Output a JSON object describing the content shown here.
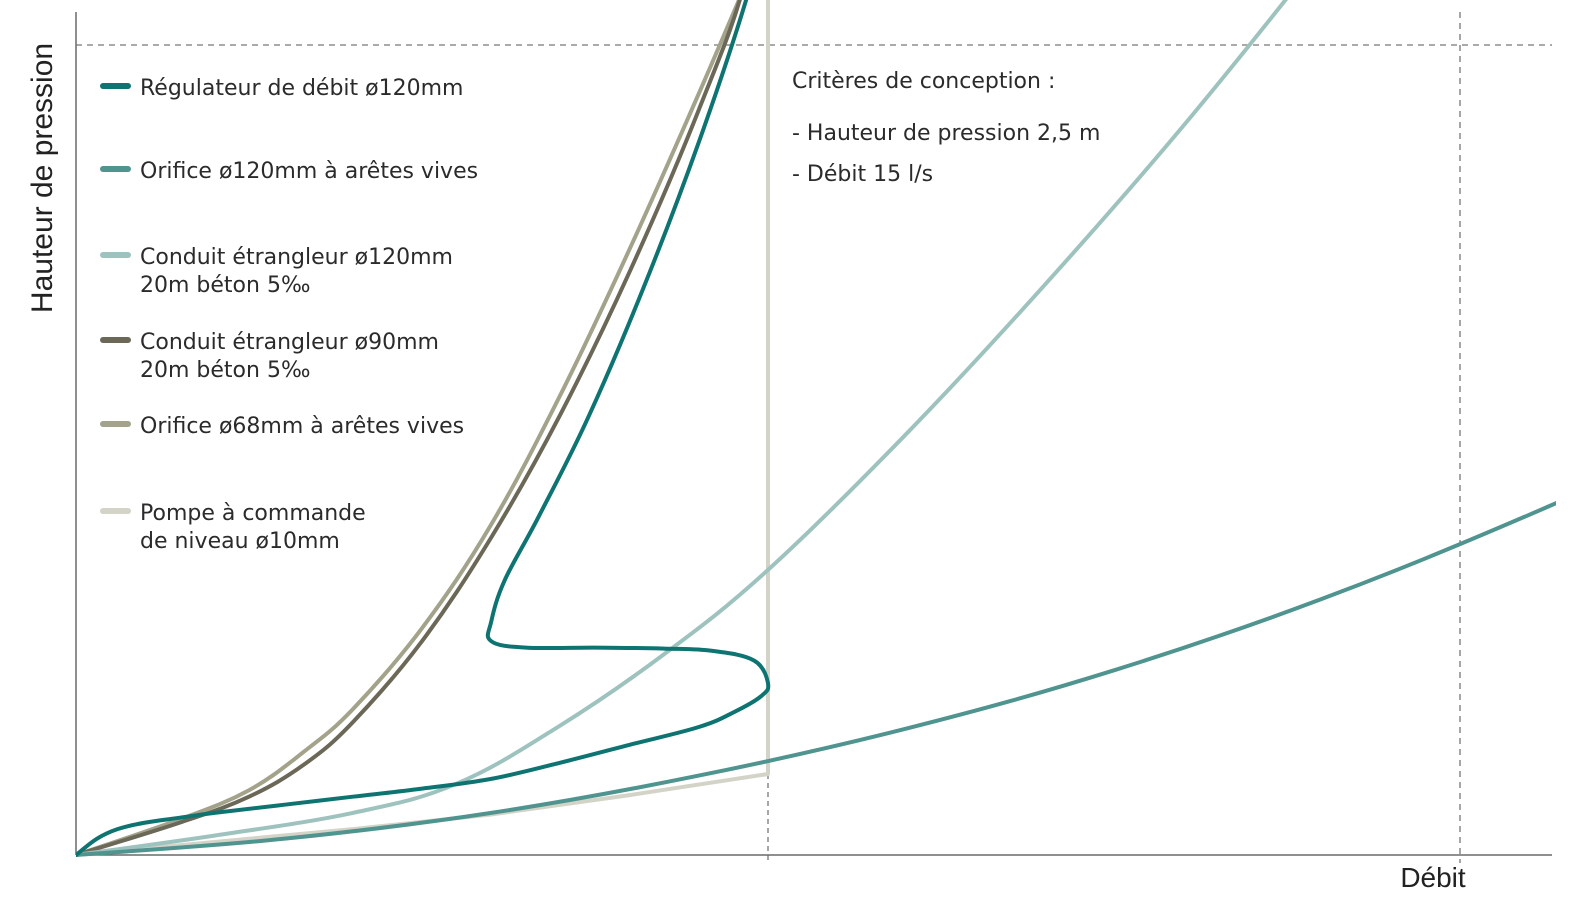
{
  "chart_data": {
    "type": "line",
    "ylabel": "Hauteur de pression",
    "xlabel": "Débit",
    "xlim": [
      0,
      3.07
    ],
    "ylim": [
      0,
      3.15
    ],
    "grid": false,
    "legend_position": "top-left",
    "reference_lines": {
      "design_pressure_m": 2.5,
      "design_flow_x": 1.0,
      "second_flow_x": 2.0
    },
    "annotation": {
      "title": "Critères de conception :",
      "lines": [
        "- Hauteur de pression 2,5 m",
        "- Débit 15 l/s"
      ]
    },
    "series": [
      {
        "name": "Régulateur de débit ø120mm",
        "color": "#0e7472",
        "x": [
          0,
          0.03,
          0.06,
          0.1,
          0.15,
          0.2,
          0.3,
          0.4,
          0.5,
          0.6,
          0.7,
          0.8,
          0.9,
          0.95,
          0.99,
          1.0,
          0.98,
          0.92,
          0.85,
          0.75,
          0.65,
          0.6,
          0.6,
          0.62,
          0.67,
          0.74,
          0.82,
          0.9,
          0.97,
          1.02,
          1.03
        ],
        "y": [
          0,
          0.05,
          0.08,
          0.1,
          0.115,
          0.13,
          0.155,
          0.18,
          0.205,
          0.235,
          0.285,
          0.34,
          0.395,
          0.44,
          0.49,
          0.53,
          0.6,
          0.63,
          0.637,
          0.64,
          0.64,
          0.66,
          0.72,
          0.85,
          1.05,
          1.35,
          1.75,
          2.2,
          2.65,
          3.05,
          3.15
        ]
      },
      {
        "name": "Orifice ø120mm à arêtes vives",
        "color": "#4f948f",
        "x": [
          0,
          0.3,
          0.6,
          0.9,
          1.2,
          1.5,
          1.8,
          2.1,
          2.4,
          2.7,
          3.0,
          3.07
        ],
        "y": [
          0,
          0.05,
          0.13,
          0.245,
          0.39,
          0.57,
          0.79,
          1.05,
          1.34,
          1.67,
          2.05,
          2.15
        ]
      },
      {
        "name": "Conduit étrangleur ø120mm\n20m béton 5‰",
        "color": "#9ec3be",
        "x": [
          0,
          0.2,
          0.4,
          0.55,
          0.7,
          0.85,
          1.0,
          1.2,
          1.4,
          1.6,
          1.8,
          1.95
        ],
        "y": [
          0,
          0.06,
          0.13,
          0.22,
          0.4,
          0.62,
          0.88,
          1.3,
          1.76,
          2.25,
          2.78,
          3.2
        ]
      },
      {
        "name": "Conduit étrangleur ø90mm\n20m béton 5‰",
        "color": "#6b6858",
        "x": [
          0,
          0.15,
          0.25,
          0.33,
          0.4,
          0.5,
          0.6,
          0.7,
          0.8,
          0.9,
          0.97,
          1.01
        ],
        "y": [
          0,
          0.1,
          0.18,
          0.28,
          0.41,
          0.66,
          0.98,
          1.36,
          1.8,
          2.3,
          2.72,
          3.2
        ]
      },
      {
        "name": "Orifice ø68mm à arêtes vives",
        "color": "#a3a28a",
        "x": [
          0,
          0.15,
          0.25,
          0.33,
          0.4,
          0.5,
          0.6,
          0.7,
          0.8,
          0.9,
          0.99
        ],
        "y": [
          0,
          0.11,
          0.2,
          0.32,
          0.45,
          0.7,
          1.02,
          1.42,
          1.87,
          2.35,
          2.8
        ]
      },
      {
        "name": "Pompe à commande\nde niveau ø10mm",
        "color": "#d3d3c7",
        "x": [
          0,
          0.2,
          0.4,
          0.6,
          0.8,
          1.0,
          1.0
        ],
        "y": [
          0,
          0.04,
          0.08,
          0.125,
          0.185,
          0.25,
          3.15
        ]
      }
    ]
  }
}
